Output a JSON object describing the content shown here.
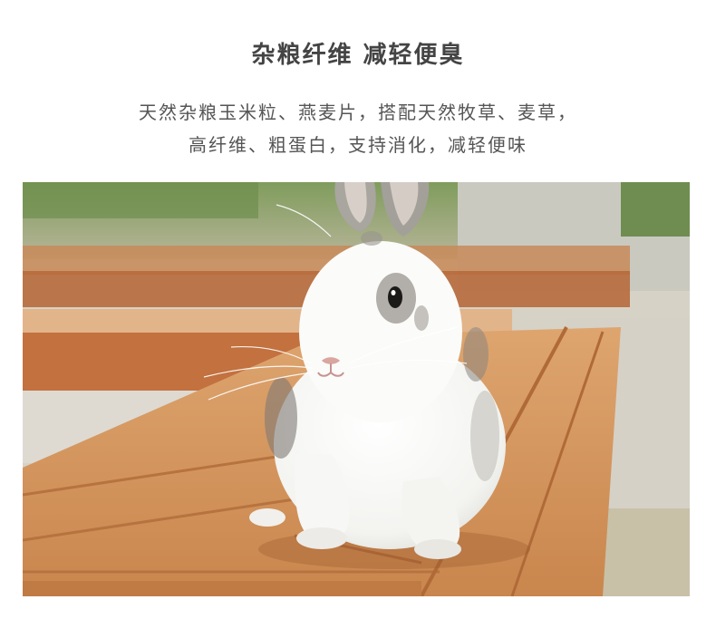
{
  "heading": "杂粮纤维 减轻便臭",
  "description": {
    "line1": "天然杂粮玉米粒、燕麦片，搭配天然牧草、麦草，",
    "line2": "高纤维、粗蛋白，支持消化，减轻便味"
  },
  "photo": {
    "subject": "white-rabbit",
    "colors": {
      "wood": "#d99a62",
      "wood_dark": "#b4683a",
      "background_green": "#7c9a5a",
      "rabbit": "#f7f7f5"
    }
  }
}
